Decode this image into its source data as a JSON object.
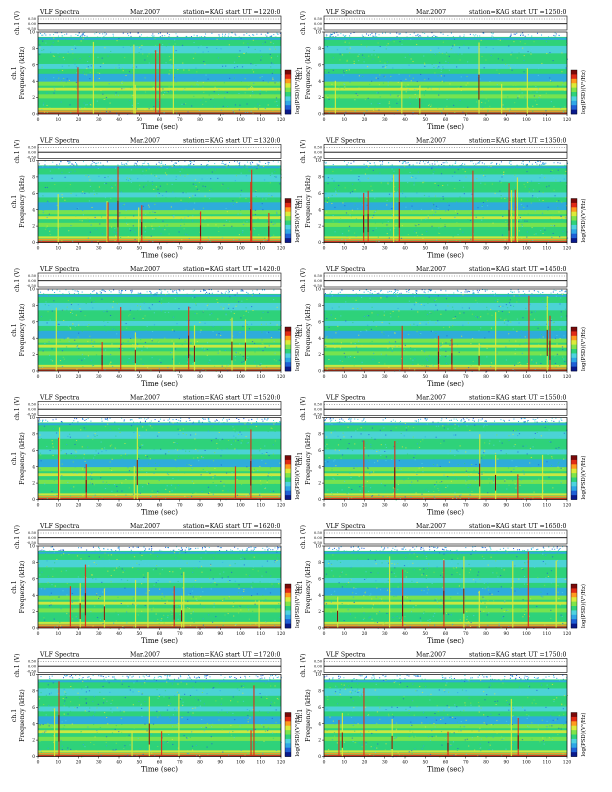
{
  "colors": {
    "spectrogram_scale": [
      "#0a1a8c",
      "#1f5fd6",
      "#2fa7e6",
      "#4fd3df",
      "#2fd27a",
      "#7fe44a",
      "#dcea3a",
      "#ff9a1f",
      "#e02a16",
      "#7a0a0a"
    ],
    "frame": "#000000",
    "panel_background": "#ffffff"
  },
  "chart_data": [
    {
      "type": "heatmap",
      "title": {
        "left": "VLF Spectra",
        "center": "Mar.2007",
        "right": "station=KAG  start  UT =1220:0"
      },
      "ylabel_top": "ch.1 (V)",
      "ylabel": "Frequency (kHz)",
      "ylabel_ch": "ch.1",
      "xlabel": "Time (sec)",
      "colorbar_label": "log(PSD)(V²/Hz)",
      "x_ticks": [
        "0",
        "10",
        "20",
        "30",
        "40",
        "50",
        "60",
        "70",
        "80",
        "90",
        "100",
        "110",
        "120"
      ],
      "y_ticks": [
        "0",
        "2",
        "4",
        "6",
        "8",
        "10"
      ],
      "amp_ticks": [
        "0.50",
        "0.00",
        "-0.50"
      ],
      "xlim": [
        0,
        120
      ],
      "ylim": [
        0,
        10
      ]
    },
    {
      "type": "heatmap",
      "title": {
        "left": "VLF Spectra",
        "center": "Mar.2007",
        "right": "station=KAG  start  UT =1250:0"
      },
      "ylabel_top": "ch.1 (V)",
      "ylabel": "Frequency (kHz)",
      "ylabel_ch": "ch.1",
      "xlabel": "Time (sec)",
      "colorbar_label": "log(PSD)(V²/Hz)",
      "x_ticks": [
        "0",
        "10",
        "20",
        "30",
        "40",
        "50",
        "60",
        "70",
        "80",
        "90",
        "100",
        "110",
        "120"
      ],
      "y_ticks": [
        "0",
        "2",
        "4",
        "6",
        "8",
        "10"
      ],
      "amp_ticks": [
        "0.50",
        "0.00",
        "-0.50"
      ],
      "xlim": [
        0,
        120
      ],
      "ylim": [
        0,
        10
      ]
    },
    {
      "type": "heatmap",
      "title": {
        "left": "VLF Spectra",
        "center": "Mar.2007",
        "right": "station=KAG  start  UT =1320:0"
      },
      "ylabel_top": "ch.1 (V)",
      "ylabel": "Frequency (kHz)",
      "ylabel_ch": "ch.1",
      "xlabel": "Time (sec)",
      "colorbar_label": "log(PSD)(V²/Hz)",
      "x_ticks": [
        "0",
        "10",
        "20",
        "30",
        "40",
        "50",
        "60",
        "70",
        "80",
        "90",
        "100",
        "110",
        "120"
      ],
      "y_ticks": [
        "0",
        "2",
        "4",
        "6",
        "8",
        "10"
      ],
      "amp_ticks": [
        "0.50",
        "0.00",
        "-0.50"
      ],
      "xlim": [
        0,
        120
      ],
      "ylim": [
        0,
        10
      ]
    },
    {
      "type": "heatmap",
      "title": {
        "left": "VLF Spectra",
        "center": "Mar.2007",
        "right": "station=KAG  start  UT =1350:0"
      },
      "ylabel_top": "ch.1 (V)",
      "ylabel": "Frequency (kHz)",
      "ylabel_ch": "ch.1",
      "xlabel": "Time (sec)",
      "colorbar_label": "log(PSD)(V²/Hz)",
      "x_ticks": [
        "0",
        "10",
        "20",
        "30",
        "40",
        "50",
        "60",
        "70",
        "80",
        "90",
        "100",
        "110",
        "120"
      ],
      "y_ticks": [
        "0",
        "2",
        "4",
        "6",
        "8",
        "10"
      ],
      "amp_ticks": [
        "0.50",
        "0.00",
        "-0.50"
      ],
      "xlim": [
        0,
        120
      ],
      "ylim": [
        0,
        10
      ]
    },
    {
      "type": "heatmap",
      "title": {
        "left": "VLF Spectra",
        "center": "Mar.2007",
        "right": "station=KAG  start  UT =1420:0"
      },
      "ylabel_top": "ch.1 (V)",
      "ylabel": "Frequency (kHz)",
      "ylabel_ch": "ch.1",
      "xlabel": "Time (sec)",
      "colorbar_label": "log(PSD)(V²/Hz)",
      "x_ticks": [
        "0",
        "10",
        "20",
        "30",
        "40",
        "50",
        "60",
        "70",
        "80",
        "90",
        "100",
        "110",
        "120"
      ],
      "y_ticks": [
        "0",
        "2",
        "4",
        "6",
        "8",
        "10"
      ],
      "amp_ticks": [
        "0.50",
        "0.00",
        "-0.50"
      ],
      "xlim": [
        0,
        120
      ],
      "ylim": [
        0,
        10
      ]
    },
    {
      "type": "heatmap",
      "title": {
        "left": "VLF Spectra",
        "center": "Mar.2007",
        "right": "station=KAG  start  UT =1450:0"
      },
      "ylabel_top": "ch.1 (V)",
      "ylabel": "Frequency (kHz)",
      "ylabel_ch": "ch.1",
      "xlabel": "Time (sec)",
      "colorbar_label": "log(PSD)(V²/Hz)",
      "x_ticks": [
        "0",
        "10",
        "20",
        "30",
        "40",
        "50",
        "60",
        "70",
        "80",
        "90",
        "100",
        "110",
        "120"
      ],
      "y_ticks": [
        "0",
        "2",
        "4",
        "6",
        "8",
        "10"
      ],
      "amp_ticks": [
        "0.50",
        "0.00",
        "-0.50"
      ],
      "xlim": [
        0,
        120
      ],
      "ylim": [
        0,
        10
      ]
    },
    {
      "type": "heatmap",
      "title": {
        "left": "VLF Spectra",
        "center": "Mar.2007",
        "right": "station=KAG  start  UT =1520:0"
      },
      "ylabel_top": "ch.1 (V)",
      "ylabel": "Frequency (kHz)",
      "ylabel_ch": "ch.1",
      "xlabel": "Time (sec)",
      "colorbar_label": "log(PSD)(V²/Hz)",
      "x_ticks": [
        "0",
        "10",
        "20",
        "30",
        "40",
        "50",
        "60",
        "70",
        "80",
        "90",
        "100",
        "110",
        "120"
      ],
      "y_ticks": [
        "0",
        "2",
        "4",
        "6",
        "8",
        "10"
      ],
      "amp_ticks": [
        "0.50",
        "0.00",
        "-0.50"
      ],
      "xlim": [
        0,
        120
      ],
      "ylim": [
        0,
        10
      ]
    },
    {
      "type": "heatmap",
      "title": {
        "left": "VLF Spectra",
        "center": "Mar.2007",
        "right": "station=KAG  start  UT =1550:0"
      },
      "ylabel_top": "ch.1 (V)",
      "ylabel": "Frequency (kHz)",
      "ylabel_ch": "ch.1",
      "xlabel": "Time (sec)",
      "colorbar_label": "log(PSD)(V²/Hz)",
      "x_ticks": [
        "0",
        "10",
        "20",
        "30",
        "40",
        "50",
        "60",
        "70",
        "80",
        "90",
        "100",
        "110",
        "120"
      ],
      "y_ticks": [
        "0",
        "2",
        "4",
        "6",
        "8",
        "10"
      ],
      "amp_ticks": [
        "0.50",
        "0.00",
        "-0.50"
      ],
      "xlim": [
        0,
        120
      ],
      "ylim": [
        0,
        10
      ]
    },
    {
      "type": "heatmap",
      "title": {
        "left": "VLF Spectra",
        "center": "Mar.2007",
        "right": "station=KAG  start  UT =1620:0"
      },
      "ylabel_top": "ch.1 (V)",
      "ylabel": "Frequency (kHz)",
      "ylabel_ch": "ch.1",
      "xlabel": "Time (sec)",
      "colorbar_label": "log(PSD)(V²/Hz)",
      "x_ticks": [
        "0",
        "10",
        "20",
        "30",
        "40",
        "50",
        "60",
        "70",
        "80",
        "90",
        "100",
        "110",
        "120"
      ],
      "y_ticks": [
        "0",
        "2",
        "4",
        "6",
        "8",
        "10"
      ],
      "amp_ticks": [
        "0.50",
        "0.00",
        "-0.50"
      ],
      "xlim": [
        0,
        120
      ],
      "ylim": [
        0,
        10
      ]
    },
    {
      "type": "heatmap",
      "title": {
        "left": "VLF Spectra",
        "center": "Mar.2007",
        "right": "station=KAG  start  UT =1650:0"
      },
      "ylabel_top": "ch.1 (V)",
      "ylabel": "Frequency (kHz)",
      "ylabel_ch": "ch.1",
      "xlabel": "Time (sec)",
      "colorbar_label": "log(PSD)(V²/Hz)",
      "x_ticks": [
        "0",
        "10",
        "20",
        "30",
        "40",
        "50",
        "60",
        "70",
        "80",
        "90",
        "100",
        "110",
        "120"
      ],
      "y_ticks": [
        "0",
        "2",
        "4",
        "6",
        "8",
        "10"
      ],
      "amp_ticks": [
        "0.50",
        "0.00",
        "-0.50"
      ],
      "xlim": [
        0,
        120
      ],
      "ylim": [
        0,
        10
      ]
    },
    {
      "type": "heatmap",
      "title": {
        "left": "VLF Spectra",
        "center": "Mar.2007",
        "right": "station=KAG  start  UT =1720:0"
      },
      "ylabel_top": "ch.1 (V)",
      "ylabel": "Frequency (kHz)",
      "ylabel_ch": "ch.1",
      "xlabel": "Time (sec)",
      "colorbar_label": "log(PSD)(V²/Hz)",
      "x_ticks": [
        "0",
        "10",
        "20",
        "30",
        "40",
        "50",
        "60",
        "70",
        "80",
        "90",
        "100",
        "110",
        "120"
      ],
      "y_ticks": [
        "0",
        "2",
        "4",
        "6",
        "8",
        "10"
      ],
      "amp_ticks": [
        "0.50",
        "0.00",
        "-0.50"
      ],
      "xlim": [
        0,
        120
      ],
      "ylim": [
        0,
        10
      ]
    },
    {
      "type": "heatmap",
      "title": {
        "left": "VLF Spectra",
        "center": "Mar.2007",
        "right": "station=KAG  start  UT =1750:0"
      },
      "ylabel_top": "ch.1 (V)",
      "ylabel": "Frequency (kHz)",
      "ylabel_ch": "ch.1",
      "xlabel": "Time (sec)",
      "colorbar_label": "log(PSD)(V²/Hz)",
      "x_ticks": [
        "0",
        "10",
        "20",
        "30",
        "40",
        "50",
        "60",
        "70",
        "80",
        "90",
        "100",
        "110",
        "120"
      ],
      "y_ticks": [
        "0",
        "2",
        "4",
        "6",
        "8",
        "10"
      ],
      "amp_ticks": [
        "0.50",
        "0.00",
        "-0.50"
      ],
      "xlim": [
        0,
        120
      ],
      "ylim": [
        0,
        10
      ]
    }
  ]
}
